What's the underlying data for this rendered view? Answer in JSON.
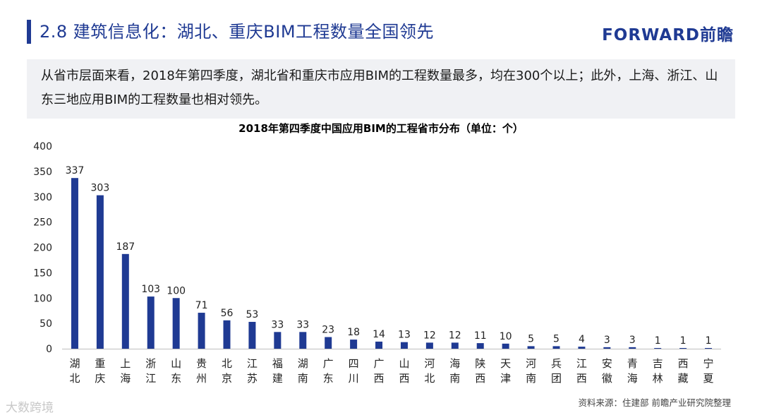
{
  "header": {
    "title": "2.8 建筑信息化：湖北、重庆BIM工程数量全国领先",
    "logo": "FORWARD前瞻"
  },
  "summary": {
    "text": "从省市层面来看，2018年第四季度，湖北省和重庆市应用BIM的工程数量最多，均在300个以上；此外，上海、浙江、山东三地应用BIM的工程数量也相对领先。"
  },
  "chart_data": {
    "type": "bar",
    "title": "2018年第四季度中国应用BIM的工程省市分布（单位：个）",
    "categories": [
      "湖北",
      "重庆",
      "上海",
      "浙江",
      "山东",
      "贵州",
      "北京",
      "江苏",
      "福建",
      "湖南",
      "广东",
      "四川",
      "广西",
      "山西",
      "河北",
      "海南",
      "陕西",
      "天津",
      "河南",
      "兵团",
      "江西",
      "安徽",
      "青海",
      "吉林",
      "西藏",
      "宁夏"
    ],
    "values": [
      337,
      303,
      187,
      103,
      100,
      71,
      56,
      53,
      33,
      33,
      23,
      18,
      14,
      13,
      12,
      12,
      11,
      10,
      5,
      5,
      4,
      3,
      3,
      1,
      1,
      1
    ],
    "ylim": [
      0,
      400
    ],
    "yticks": [
      0,
      50,
      100,
      150,
      200,
      250,
      300,
      350,
      400
    ],
    "xlabel": "",
    "ylabel": "",
    "grid": false,
    "bar_color": "#1f3a93",
    "data_labels": true
  },
  "footer": {
    "source": "资料来源：住建部 前瞻产业研究院整理",
    "watermark": "大数跨境"
  }
}
